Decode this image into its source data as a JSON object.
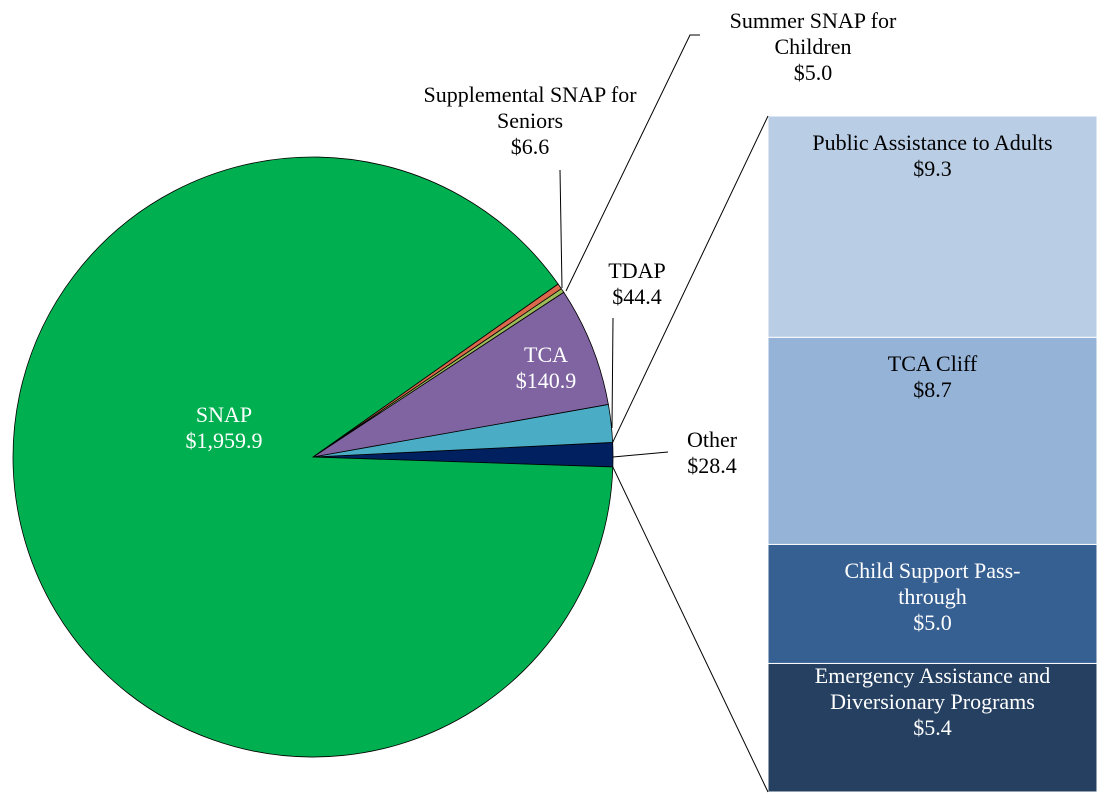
{
  "chart_data": [
    {
      "type": "pie",
      "categories": [
        "Other",
        "TDAP",
        "TCA",
        "Summer SNAP for Children",
        "Supplemental SNAP for Seniors",
        "SNAP"
      ],
      "values": [
        28.4,
        44.4,
        140.9,
        5.0,
        6.6,
        1959.9
      ],
      "value_labels": [
        "$28.4",
        "$44.4",
        "$140.9",
        "$5.0",
        "$6.6",
        "$1,959.9"
      ],
      "colors": [
        "#002060",
        "#4bacc6",
        "#8064a2",
        "#9bbb59",
        "#d9694a",
        "#00b050"
      ]
    },
    {
      "type": "stacked-bar",
      "categories": [
        "Public Assistance to Adults",
        "TCA Cliff",
        "Child Support Pass-through",
        "Emergency Assistance and Diversionary Programs"
      ],
      "values": [
        9.3,
        8.7,
        5.0,
        5.4
      ],
      "value_labels": [
        "$9.3",
        "$8.7",
        "$5.0",
        "$5.4"
      ],
      "colors": [
        "#b9cde5",
        "#95b3d7",
        "#376092",
        "#254061"
      ]
    }
  ]
}
